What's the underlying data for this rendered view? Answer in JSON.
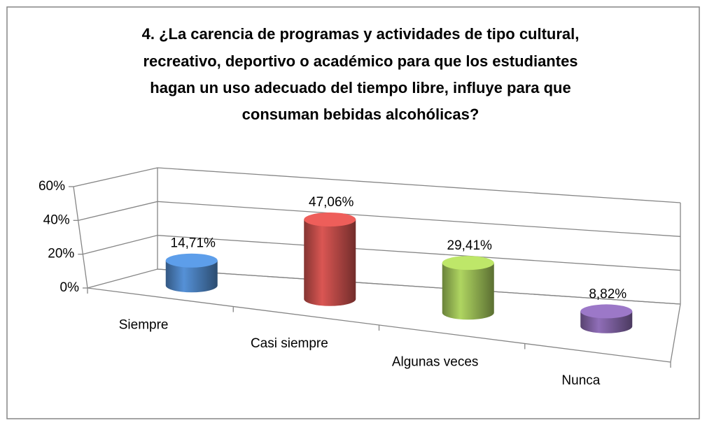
{
  "chart_data": {
    "type": "bar3d-cylinder",
    "title": [
      "4. ¿La carencia de programas y actividades de tipo cultural,",
      "recreativo, deportivo o académico para que los estudiantes",
      "hagan un uso adecuado del tiempo libre, influye para que",
      "consuman bebidas alcohólicas?"
    ],
    "categories": [
      "Siempre",
      "Casi siempre",
      "Algunas veces",
      "Nunca"
    ],
    "values": [
      14.71,
      47.06,
      29.41,
      8.82
    ],
    "value_labels": [
      "14,71%",
      "47,06%",
      "29,41%",
      "8,82%"
    ],
    "colors": [
      "#4a7ebb",
      "#be4b48",
      "#98b954",
      "#7d60a0"
    ],
    "ylim": [
      0,
      60
    ],
    "yticks": [
      {
        "value": 0,
        "label": "0%"
      },
      {
        "value": 20,
        "label": "20%"
      },
      {
        "value": 40,
        "label": "40%"
      },
      {
        "value": 60,
        "label": "60%"
      }
    ],
    "grid": true
  }
}
